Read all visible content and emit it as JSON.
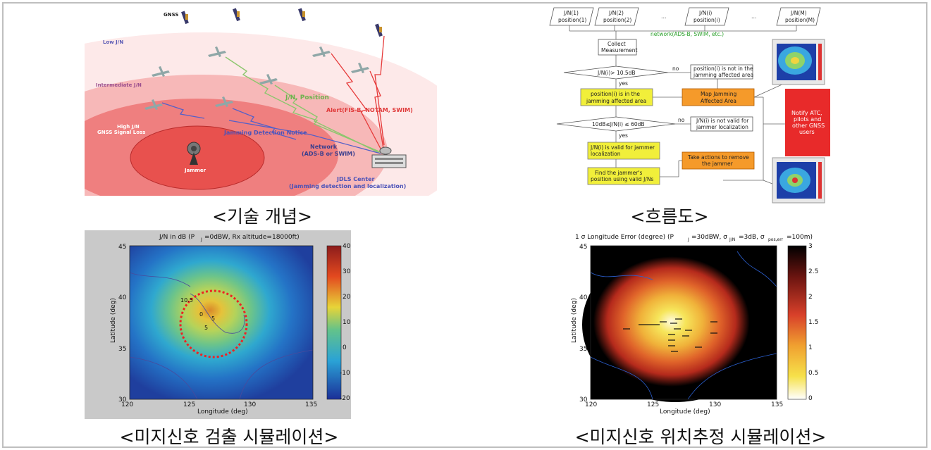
{
  "captions": {
    "concept": "<기술 개념>",
    "flow": "<흐름도>",
    "detection": "<미지신호 검출 시뮬레이션>",
    "localization": "<미지신호 위치추정 시뮬레이션>"
  },
  "concept": {
    "gnss": "GNSS",
    "low": "Low J/N",
    "intermediate": "Intermediate J/N",
    "high_1": "High J/N",
    "high_2": "GNSS Signal Loss",
    "jammer": "Jammer",
    "jn_position": "J/N, Position",
    "alert": "Alert(FIS-B, NOTAM, SWIM)",
    "jamming_notice": "Jamming Detection Notice",
    "network_1": "Network",
    "network_2": "(ADS-B or SWIM)",
    "jdls_1": "JDLS Center",
    "jdls_2": "(Jamming detection and localization)"
  },
  "flow": {
    "inputs": [
      {
        "l1": "J/N(1)",
        "l2": "position(1)"
      },
      {
        "l1": "J/N(2)",
        "l2": "position(2)"
      },
      {
        "l1": "J/N(i)",
        "l2": "position(i)"
      },
      {
        "l1": "J/N(M)",
        "l2": "position(M)"
      }
    ],
    "ellipsis": "…",
    "network": "network(ADS-B, SWIM, etc.)",
    "collect_1": "Collect",
    "collect_2": "Measurement",
    "dec1": "J/N(i)> 10.5dB",
    "no": "no",
    "yes": "yes",
    "not_in_1": "position(i) is not in the",
    "not_in_2": "jamming affected area",
    "in_1": "position(i) is in the",
    "in_2": "jamming affected area",
    "map_1": "Map Jamming",
    "map_2": "Affected Area",
    "dec2": "10dB≤J/N(i) ≤ 60dB",
    "notvalid_1": "J/N(i) is not valid for",
    "notvalid_2": "jammer localization",
    "valid_1": "J/N(i) is valid for jammer",
    "valid_2": "localization",
    "action_1": "Take actions to remove",
    "action_2": "the jammer",
    "find_1": "Find the jammer's",
    "find_2": "position using valid J/Ns",
    "notify": [
      "Notify ATC,",
      "pilots and",
      "other GNSS",
      "users"
    ]
  },
  "detection_plot": {
    "title": "J/N in dB (P",
    "title_sub": "J",
    "title_rest": "=0dBW, Rx altitude=18000ft)",
    "xlabel": "Longitude (deg)",
    "ylabel": "Latitude (deg)",
    "xticks": [
      "120",
      "125",
      "130",
      "135"
    ],
    "yticks": [
      "45",
      "40",
      "35",
      "30"
    ],
    "cbar_ticks": [
      "40",
      "30",
      "20",
      "10",
      "0",
      "-10",
      "-20"
    ],
    "contour_label": "10.5",
    "contour_labels_inner": [
      "0",
      "5",
      "5"
    ]
  },
  "localization_plot": {
    "title": "1 σ Longitude Error (degree) (P",
    "title_sub": "J",
    "title_mid": "=30dBW, σ",
    "title_sub2": "J/N",
    "title_mid2": "=3dB, σ",
    "title_sub3": "pos,err",
    "title_rest": "=100m)",
    "xlabel": "Longitude (deg)",
    "ylabel": "Latitude (deg)",
    "xticks": [
      "120",
      "125",
      "130",
      "135"
    ],
    "yticks": [
      "45",
      "40",
      "35",
      "30"
    ],
    "cbar_ticks": [
      "3",
      "2.5",
      "2",
      "1.5",
      "1",
      "0.5",
      "0"
    ]
  }
}
